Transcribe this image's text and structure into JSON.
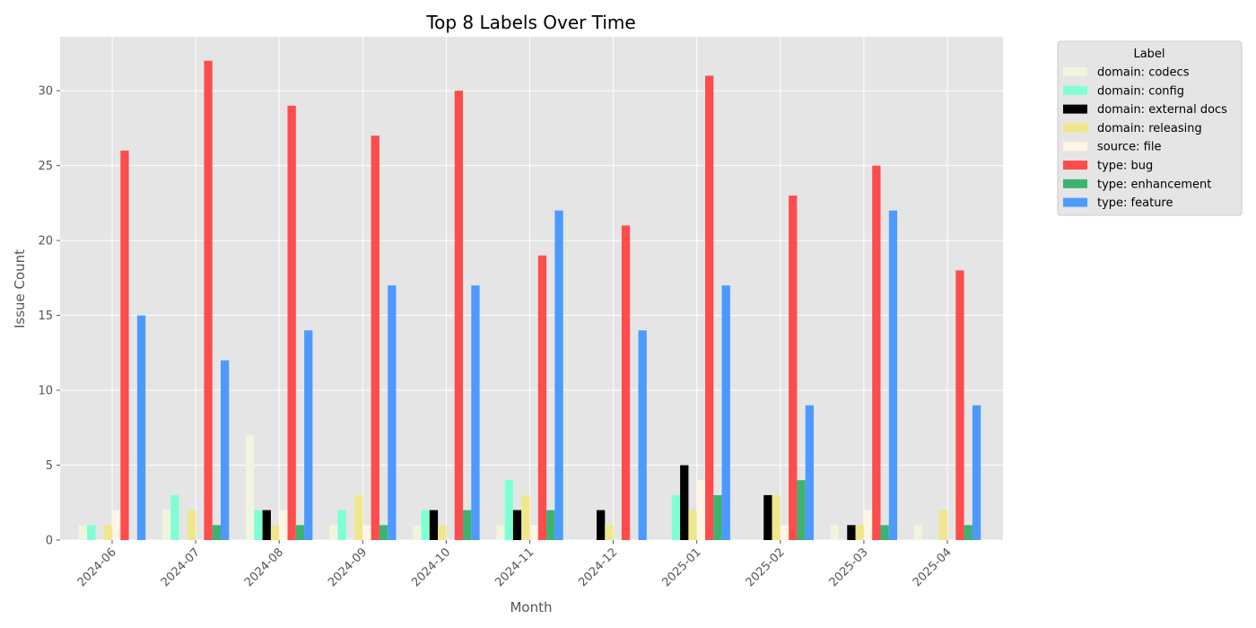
{
  "chart_data": {
    "type": "bar",
    "title": "Top 8 Labels Over Time",
    "xlabel": "Month",
    "ylabel": "Issue Count",
    "ylim": [
      0,
      33.6
    ],
    "yticks": [
      0,
      5,
      10,
      15,
      20,
      25,
      30
    ],
    "grid": true,
    "legend_title": "Label",
    "legend_position": "outside-top-right",
    "categories": [
      "2024-06",
      "2024-07",
      "2024-08",
      "2024-09",
      "2024-10",
      "2024-11",
      "2024-12",
      "2025-01",
      "2025-02",
      "2025-03",
      "2025-04"
    ],
    "series": [
      {
        "name": "domain: codecs",
        "color": "#f0f5dc",
        "values": [
          1,
          2,
          7,
          1,
          1,
          1,
          0,
          0,
          0,
          1,
          1
        ]
      },
      {
        "name": "domain: config",
        "color": "#7fffd4",
        "values": [
          1,
          3,
          2,
          2,
          2,
          4,
          0,
          3,
          0,
          0,
          0
        ]
      },
      {
        "name": "domain: external docs",
        "color": "#000000",
        "values": [
          0,
          0,
          2,
          0,
          2,
          2,
          2,
          5,
          3,
          1,
          0
        ]
      },
      {
        "name": "domain: releasing",
        "color": "#f0e68c",
        "values": [
          1,
          2,
          1,
          3,
          1,
          3,
          1,
          2,
          3,
          1,
          2
        ]
      },
      {
        "name": "source: file",
        "color": "#fdf5e6",
        "values": [
          2,
          0,
          2,
          1,
          0,
          1,
          0,
          4,
          1,
          2,
          0
        ]
      },
      {
        "name": "type: bug",
        "color": "#ff4c4c",
        "values": [
          26,
          32,
          29,
          27,
          30,
          19,
          21,
          31,
          23,
          25,
          18
        ]
      },
      {
        "name": "type: enhancement",
        "color": "#3cb371",
        "values": [
          0,
          1,
          1,
          1,
          2,
          2,
          0,
          3,
          4,
          1,
          1
        ]
      },
      {
        "name": "type: feature",
        "color": "#4c9aff",
        "values": [
          15,
          12,
          14,
          17,
          17,
          22,
          14,
          17,
          9,
          22,
          9
        ]
      }
    ]
  }
}
